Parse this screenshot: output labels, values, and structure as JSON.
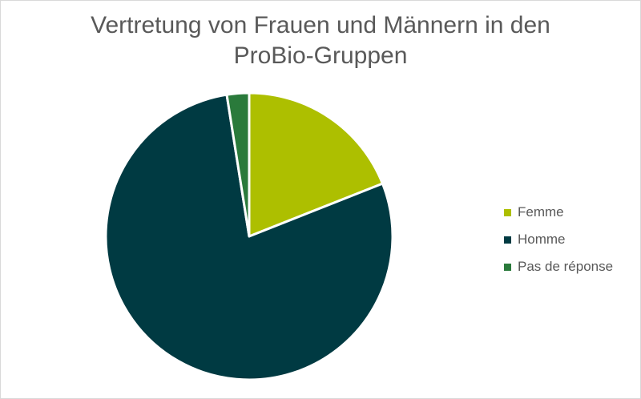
{
  "title_lines": [
    "Vertretung von Frauen und Männern in den",
    "ProBio-Gruppen"
  ],
  "chart_data": {
    "type": "pie",
    "title": "Vertretung von Frauen und Männern in den ProBio-Gruppen",
    "categories": [
      "Femme",
      "Homme",
      "Pas de réponse"
    ],
    "values": [
      19,
      78.5,
      2.5
    ],
    "colors": [
      "#adbf00",
      "#003a42",
      "#2a7a3b"
    ],
    "legend_position": "right"
  }
}
